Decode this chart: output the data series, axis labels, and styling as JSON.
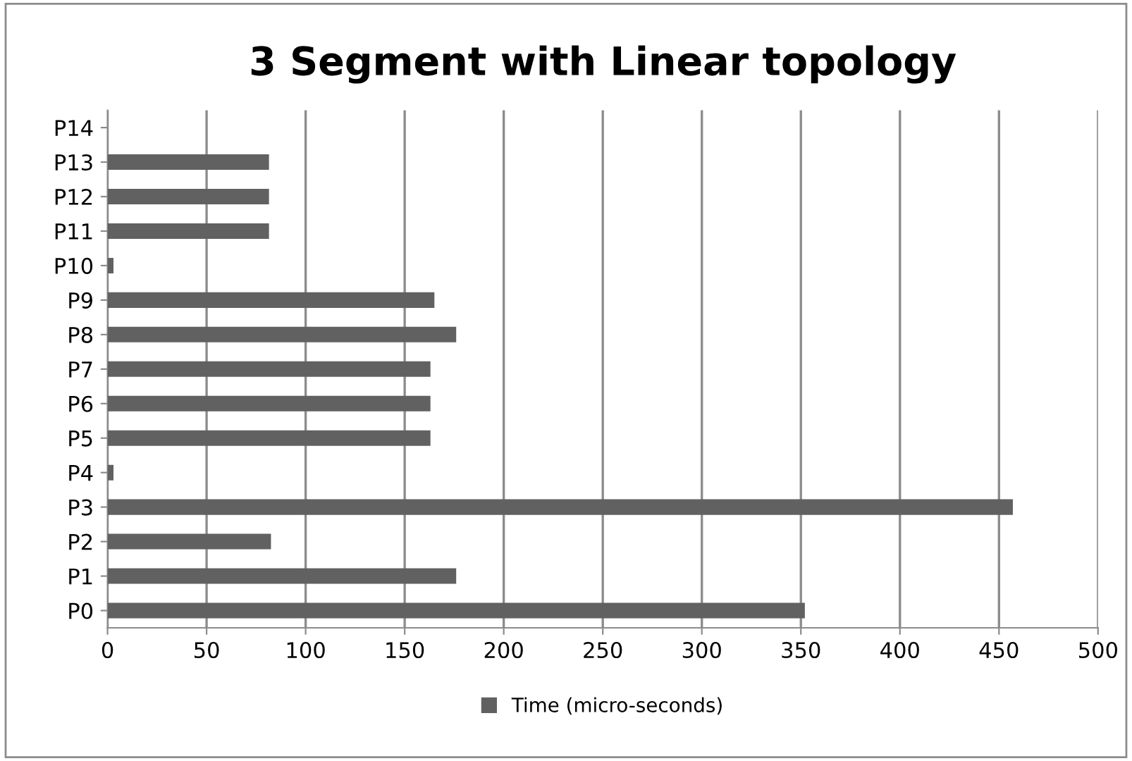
{
  "chart_data": {
    "type": "bar",
    "orientation": "horizontal",
    "title": "3 Segment with Linear topology",
    "categories": [
      "P14",
      "P13",
      "P12",
      "P11",
      "P10",
      "P9",
      "P8",
      "P7",
      "P6",
      "P5",
      "P4",
      "P3",
      "P2",
      "P1",
      "P0"
    ],
    "series": [
      {
        "name": "Time (micro-seconds)",
        "color": "#616161",
        "values": [
          null,
          81.5,
          81.5,
          81.5,
          3,
          165,
          176,
          163,
          163,
          163,
          3,
          457,
          82.5,
          176,
          352
        ]
      }
    ],
    "xlim": [
      0,
      500
    ],
    "xticks": [
      0,
      50,
      100,
      150,
      200,
      250,
      300,
      350,
      400,
      450,
      500
    ],
    "grid": "x",
    "legend": "bottom"
  }
}
